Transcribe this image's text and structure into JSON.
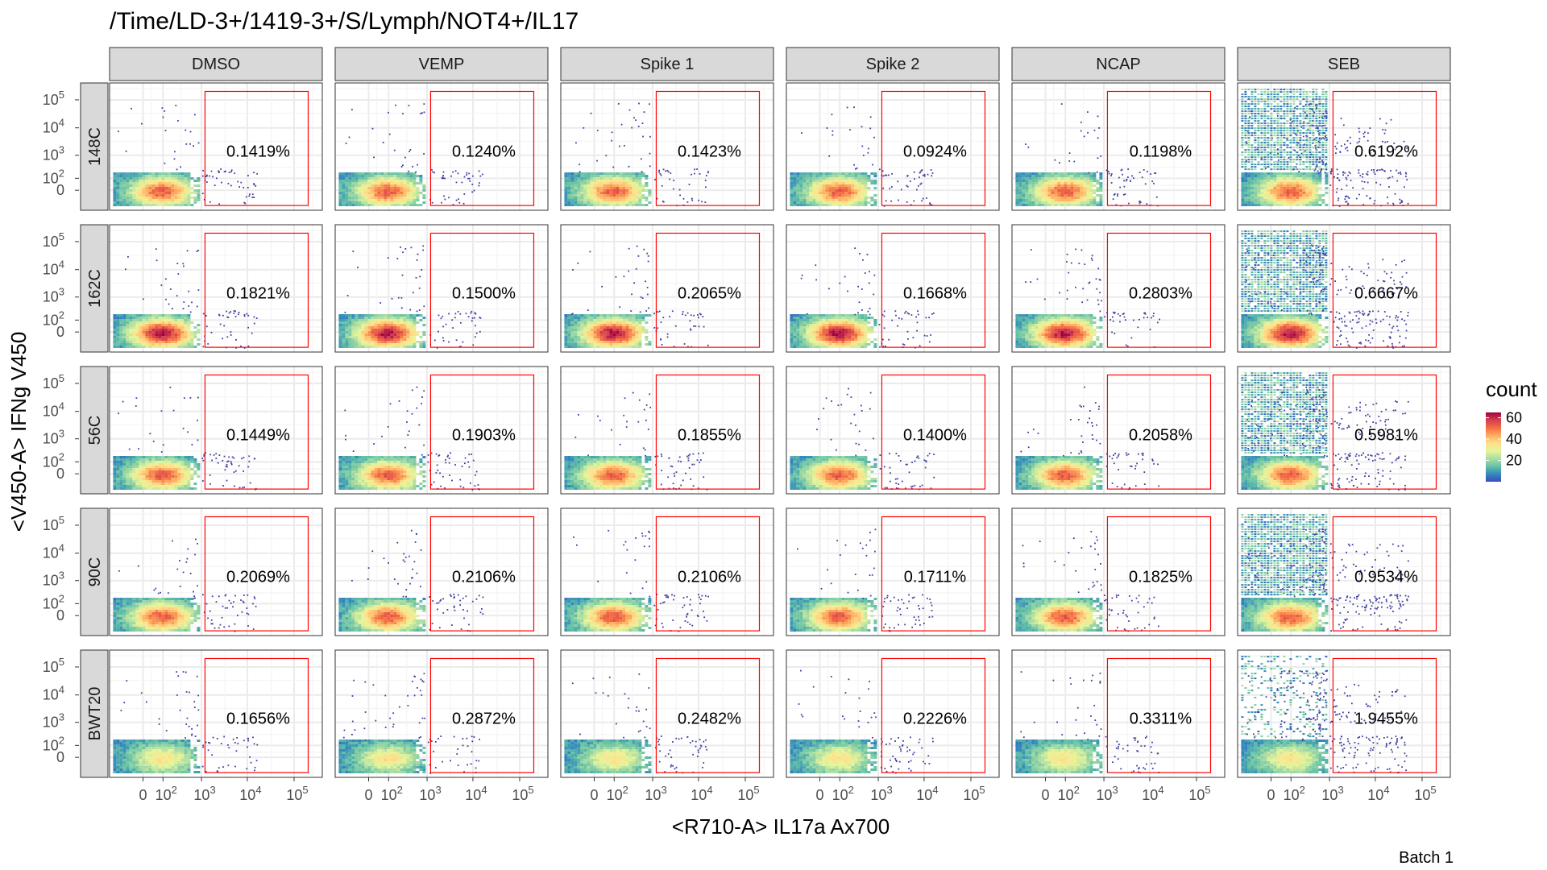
{
  "chart_data": {
    "type": "scatter",
    "title": "/Time/LD-3+/1419-3+/S/Lymph/NOT4+/IL17",
    "xlabel": "<R710-A> IL17a Ax700",
    "ylabel": "<V450-A> IFNg V450",
    "caption": "Batch 1",
    "x_ticks": [
      "0",
      "2",
      "3",
      "4",
      "5"
    ],
    "y_ticks": [
      "5",
      "4",
      "3",
      "2",
      "0"
    ],
    "tick_base": "10",
    "columns": [
      "DMSO",
      "VEMP",
      "Spike 1",
      "Spike 2",
      "NCAP",
      "SEB"
    ],
    "rows": [
      "148C",
      "162C",
      "56C",
      "90C",
      "BWT20"
    ],
    "gate_percentages": [
      [
        "0.1419%",
        "0.1240%",
        "0.1423%",
        "0.0924%",
        "0.1198%",
        "0.6192%"
      ],
      [
        "0.1821%",
        "0.1500%",
        "0.2065%",
        "0.1668%",
        "0.2803%",
        "0.6667%"
      ],
      [
        "0.1449%",
        "0.1903%",
        "0.1855%",
        "0.1400%",
        "0.2058%",
        "0.5981%"
      ],
      [
        "0.2069%",
        "0.2106%",
        "0.2106%",
        "0.1711%",
        "0.1825%",
        "0.9534%"
      ],
      [
        "0.1656%",
        "0.2872%",
        "0.2482%",
        "0.2226%",
        "0.3311%",
        "1.9455%"
      ]
    ],
    "gate_x_range": [
      1200,
      200000
    ],
    "gate_y_range": [
      -150,
      200000
    ],
    "legend": {
      "title": "count",
      "ticks": [
        "60",
        "40",
        "20"
      ],
      "tick_values": [
        60,
        40,
        20
      ],
      "range": [
        0,
        65
      ],
      "colors": [
        "#3b4cc0",
        "#3288bd",
        "#66c2a5",
        "#abdda4",
        "#e6f598",
        "#fee08b",
        "#fdae61",
        "#f46d43",
        "#d53e4f",
        "#9e0142"
      ]
    },
    "gate_color": "#ff0000",
    "grid": true,
    "legend_placement": "right"
  }
}
